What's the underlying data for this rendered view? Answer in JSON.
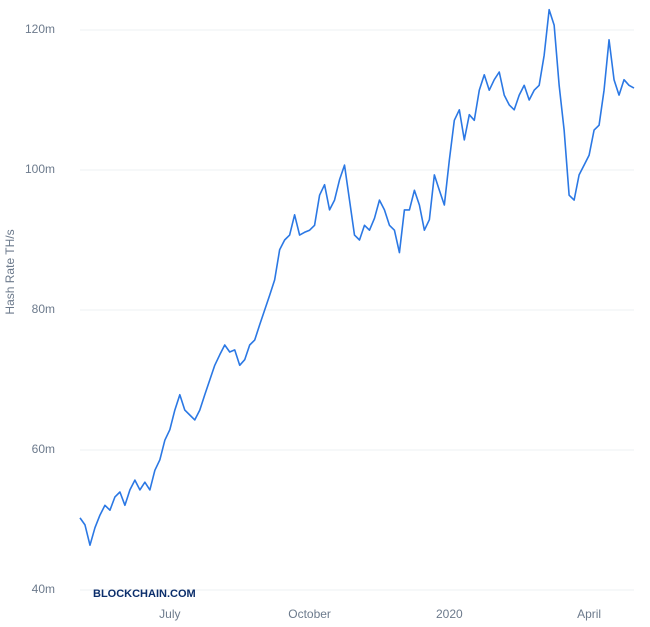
{
  "chart_data": {
    "type": "line",
    "y_label": "Hash Rate TH/s",
    "watermark": "BLOCKCHAIN.COM",
    "categories": [
      null,
      null,
      null,
      null,
      null,
      null,
      null,
      null,
      null,
      null,
      null,
      null,
      null,
      null,
      null,
      null,
      null,
      null,
      "July",
      null,
      null,
      null,
      null,
      null,
      null,
      null,
      null,
      null,
      null,
      null,
      null,
      null,
      null,
      null,
      null,
      null,
      null,
      null,
      null,
      null,
      null,
      null,
      null,
      null,
      null,
      null,
      "October",
      null,
      null,
      null,
      null,
      null,
      null,
      null,
      null,
      null,
      null,
      null,
      null,
      null,
      null,
      null,
      null,
      null,
      null,
      null,
      null,
      null,
      null,
      null,
      null,
      null,
      null,
      null,
      "2020",
      null,
      null,
      null,
      null,
      null,
      null,
      null,
      null,
      null,
      null,
      null,
      null,
      null,
      null,
      null,
      null,
      null,
      null,
      null,
      null,
      null,
      null,
      null,
      null,
      null,
      null,
      null,
      "April",
      null,
      null,
      null,
      null,
      null,
      null,
      null,
      null,
      null
    ],
    "series": [
      {
        "name": "Hash Rate",
        "color": "#2b78e4",
        "values": [
          50300000,
          49300000,
          46400000,
          48900000,
          50700000,
          52100000,
          51400000,
          53300000,
          54000000,
          52100000,
          54300000,
          55700000,
          54300000,
          55400000,
          54300000,
          57100000,
          58600000,
          61400000,
          62900000,
          65700000,
          67900000,
          65700000,
          65000000,
          64300000,
          65700000,
          67900000,
          70000000,
          72100000,
          73600000,
          75000000,
          74000000,
          74300000,
          72100000,
          72900000,
          75000000,
          75700000,
          77900000,
          80000000,
          82100000,
          84300000,
          88600000,
          90000000,
          90700000,
          93600000,
          90700000,
          91100000,
          91400000,
          92100000,
          96400000,
          97900000,
          94300000,
          95700000,
          98600000,
          100700000,
          95700000,
          90700000,
          90000000,
          92100000,
          91400000,
          93100000,
          95700000,
          94300000,
          92100000,
          91400000,
          88200000,
          94300000,
          94300000,
          97100000,
          95000000,
          91400000,
          92900000,
          99300000,
          97100000,
          95000000,
          101400000,
          107100000,
          108600000,
          104300000,
          107900000,
          107100000,
          111400000,
          113600000,
          111400000,
          112900000,
          114000000,
          110700000,
          109300000,
          108600000,
          110700000,
          112100000,
          110000000,
          111400000,
          112100000,
          116400000,
          122900000,
          120700000,
          112100000,
          105700000,
          96400000,
          95700000,
          99300000,
          100700000,
          102100000,
          105700000,
          106400000,
          111400000,
          118600000,
          112900000,
          110700000,
          112900000,
          112100000,
          111700000
        ]
      }
    ],
    "ylim": [
      40000000,
      124000000
    ],
    "yticks": [
      {
        "value": 40000000,
        "label": "40m"
      },
      {
        "value": 60000000,
        "label": "60m"
      },
      {
        "value": 80000000,
        "label": "80m"
      },
      {
        "value": 100000000,
        "label": "100m"
      },
      {
        "value": 120000000,
        "label": "120m"
      }
    ],
    "grid": true
  }
}
